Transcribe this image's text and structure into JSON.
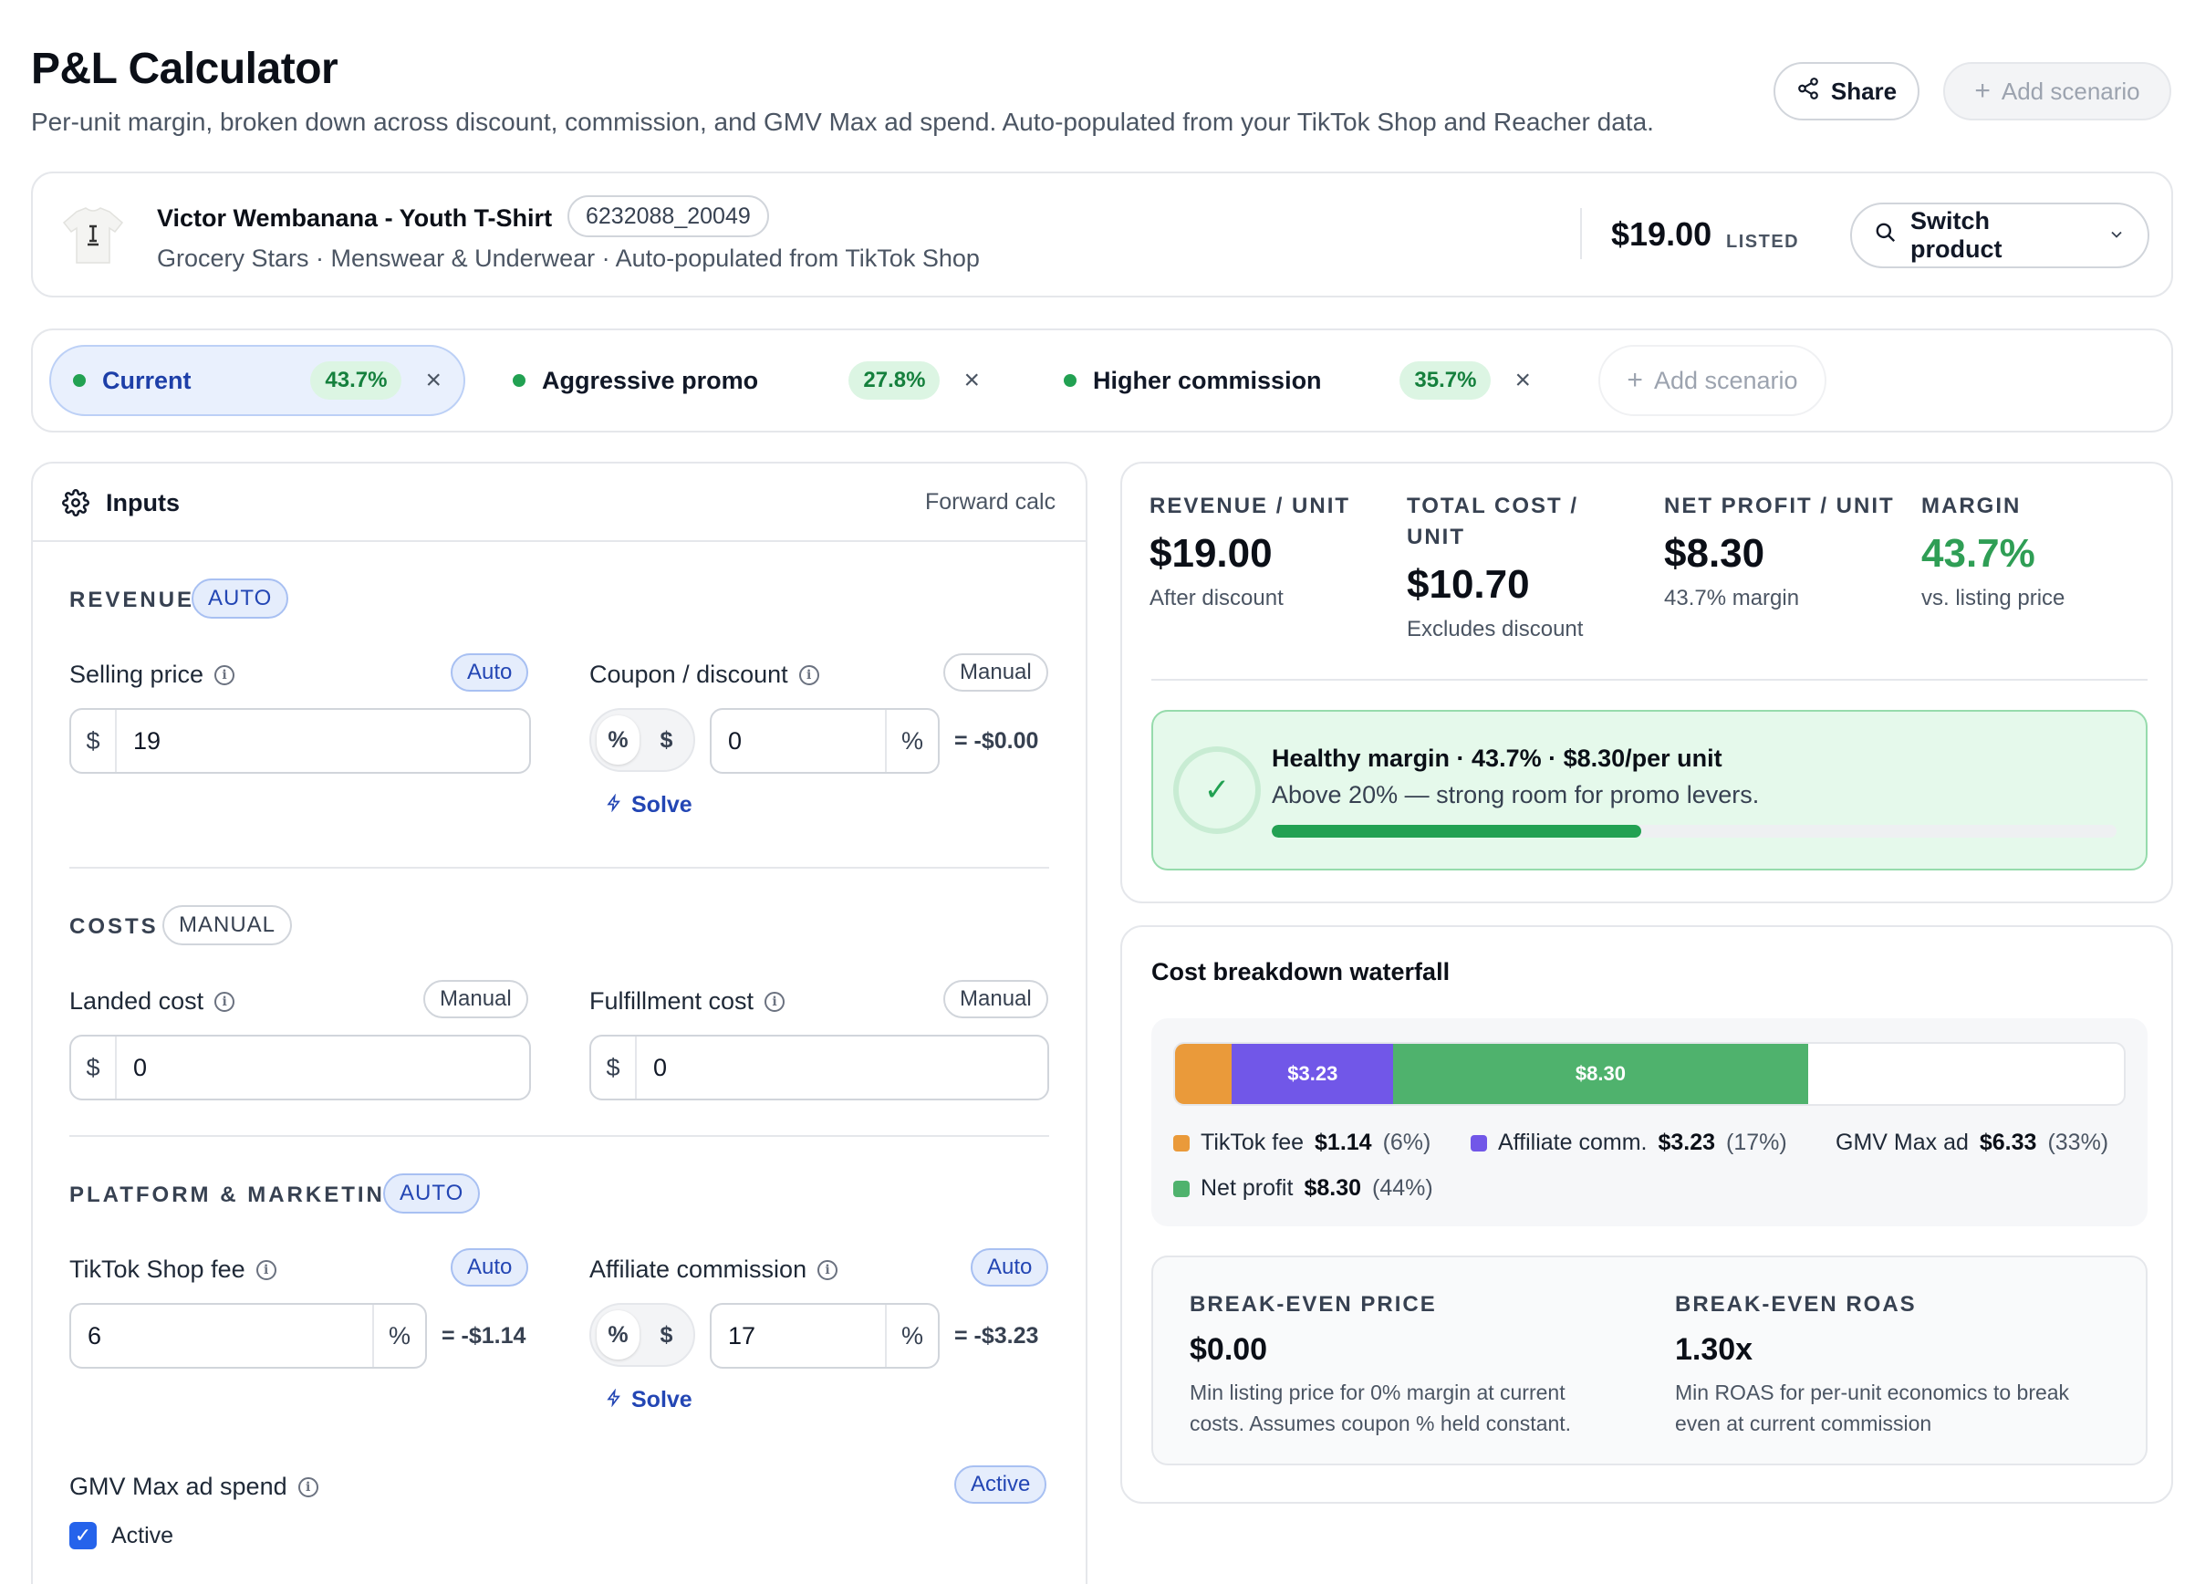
{
  "header": {
    "title": "P&L Calculator",
    "subtitle": "Per-unit margin, broken down across discount, commission, and GMV Max ad spend. Auto-populated from your TikTok Shop and Reacher data.",
    "share_label": "Share",
    "add_scenario_label": "Add scenario"
  },
  "product": {
    "name": "Victor Wembanana - Youth T-Shirt",
    "sku": "6232088_20049",
    "meta": "Grocery Stars · Menswear & Underwear · Auto-populated from TikTok Shop",
    "price": "$19.00",
    "price_tag": "LISTED",
    "switch_label": "Switch product"
  },
  "scenarios": [
    {
      "name": "Current",
      "margin": "43.7%",
      "active": true
    },
    {
      "name": "Aggressive promo",
      "margin": "27.8%",
      "active": false
    },
    {
      "name": "Higher commission",
      "margin": "35.7%",
      "active": false
    }
  ],
  "scenario_add_label": "Add scenario",
  "inputs": {
    "title": "Inputs",
    "mode": "Forward calc",
    "revenue": {
      "title": "REVENUE",
      "badge": "AUTO",
      "selling_price": {
        "label": "Selling price",
        "badge": "Auto",
        "prefix": "$",
        "value": "19"
      },
      "coupon": {
        "label": "Coupon / discount",
        "badge": "Manual",
        "toggle_pct": "%",
        "toggle_usd": "$",
        "value": "0",
        "suffix": "%",
        "result": "= -$0.00",
        "solve": "Solve"
      }
    },
    "costs": {
      "title": "COSTS",
      "badge": "MANUAL",
      "landed": {
        "label": "Landed cost",
        "badge": "Manual",
        "prefix": "$",
        "value": "0"
      },
      "fulfillment": {
        "label": "Fulfillment cost",
        "badge": "Manual",
        "prefix": "$",
        "value": "0"
      }
    },
    "platform": {
      "title": "PLATFORM & MARKETING",
      "badge": "AUTO",
      "tiktok_fee": {
        "label": "TikTok Shop fee",
        "badge": "Auto",
        "value": "6",
        "suffix": "%",
        "result": "= -$1.14"
      },
      "affiliate": {
        "label": "Affiliate commission",
        "badge": "Auto",
        "toggle_pct": "%",
        "toggle_usd": "$",
        "value": "17",
        "suffix": "%",
        "result": "= -$3.23",
        "solve": "Solve"
      },
      "gmv": {
        "label": "GMV Max ad spend",
        "badge": "Active",
        "checkbox_label": "Active",
        "checked": true
      }
    }
  },
  "summary": {
    "kpis": [
      {
        "label": "REVENUE / UNIT",
        "value": "$19.00",
        "sub": "After discount"
      },
      {
        "label": "TOTAL COST / UNIT",
        "value": "$10.70",
        "sub": "Excludes discount"
      },
      {
        "label": "NET PROFIT / UNIT",
        "value": "$8.30",
        "sub": "43.7% margin"
      },
      {
        "label": "MARGIN",
        "value": "43.7%",
        "sub": "vs. listing price"
      }
    ],
    "health": {
      "title": "Healthy margin · 43.7% · $8.30/per unit",
      "subtitle": "Above 20% — strong room for promo levers.",
      "progress": 0.437
    }
  },
  "waterfall": {
    "title": "Cost breakdown waterfall",
    "segments": [
      {
        "name": "TikTok fee",
        "value": "$1.14",
        "pct": "(6%)",
        "share": 0.06,
        "color": "#ea9a3a",
        "bar_label": ""
      },
      {
        "name": "Affiliate comm.",
        "value": "$3.23",
        "pct": "(17%)",
        "share": 0.17,
        "color": "#7157e8",
        "bar_label": "$3.23"
      },
      {
        "name": "Net profit",
        "value": "$8.30",
        "pct": "(44%)",
        "share": 0.437,
        "color": "#4fb26d",
        "bar_label": "$8.30"
      }
    ],
    "gmv_legend": {
      "name": "GMV Max ad",
      "value": "$6.33",
      "pct": "(33%)"
    }
  },
  "breakeven": {
    "price": {
      "label": "BREAK-EVEN PRICE",
      "value": "$0.00",
      "sub": "Min listing price for 0% margin at current costs. Assumes coupon % held constant."
    },
    "roas": {
      "label": "BREAK-EVEN ROAS",
      "value": "1.30x",
      "sub": "Min ROAS for per-unit economics to break even at current commission"
    }
  },
  "colors": {
    "accent_blue": "#2346b4",
    "green": "#22a152",
    "margin_green": "#2f9e55"
  }
}
